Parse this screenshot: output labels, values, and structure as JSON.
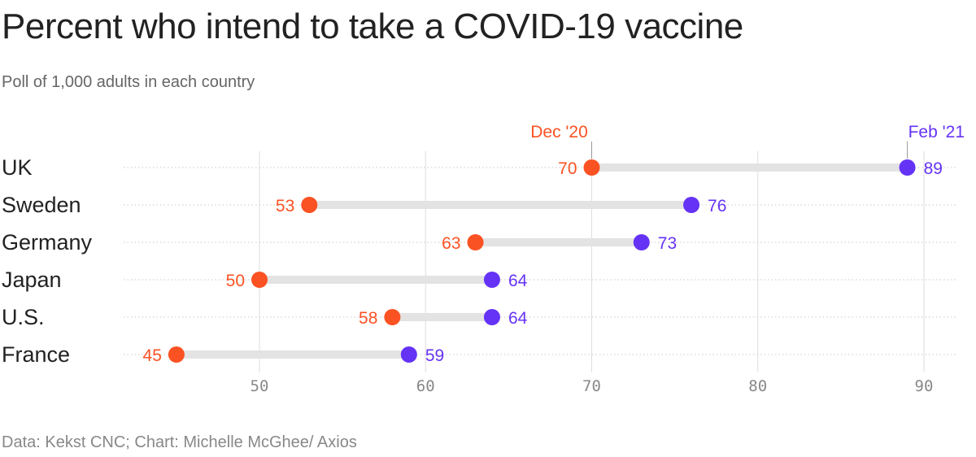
{
  "title": "Percent who intend to take a COVID-19 vaccine",
  "subtitle": "Poll of 1,000 adults in each country",
  "source": "Data: Kekst CNC; Chart: Michelle McGhee/ Axios",
  "colors": {
    "dec": "#fb5223",
    "feb": "#6533f5",
    "bar": "#e3e3e3",
    "grid": "#dddddd",
    "label": "#222222",
    "tick": "#888888"
  },
  "chart_data": {
    "type": "dumbbell",
    "categories": [
      "UK",
      "Sweden",
      "Germany",
      "Japan",
      "U.S.",
      "France"
    ],
    "series": [
      {
        "name": "Dec '20",
        "values": [
          70,
          53,
          63,
          50,
          58,
          45
        ]
      },
      {
        "name": "Feb '21",
        "values": [
          89,
          76,
          73,
          64,
          64,
          59
        ]
      }
    ],
    "xticks": [
      50,
      60,
      70,
      80,
      90
    ],
    "xlim": [
      42,
      92
    ],
    "grid": true
  }
}
